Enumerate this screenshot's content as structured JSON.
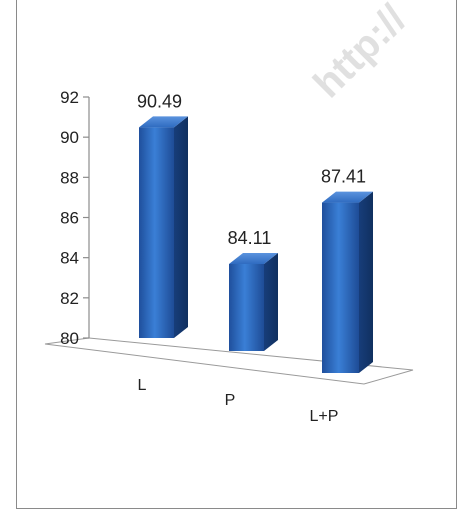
{
  "watermark": "http://",
  "chart_data": {
    "type": "bar",
    "categories": [
      "L",
      "P",
      "L+P"
    ],
    "values": [
      90.49,
      84.11,
      87.41
    ],
    "value_labels": [
      "90.49",
      "84.11",
      "87.41"
    ],
    "ylim": [
      80,
      92
    ],
    "yticks": [
      80,
      82,
      84,
      86,
      88,
      90,
      92
    ],
    "title": "",
    "xlabel": "",
    "ylabel": "",
    "bar_color": "#2f6fc7",
    "style": "3d-column"
  }
}
